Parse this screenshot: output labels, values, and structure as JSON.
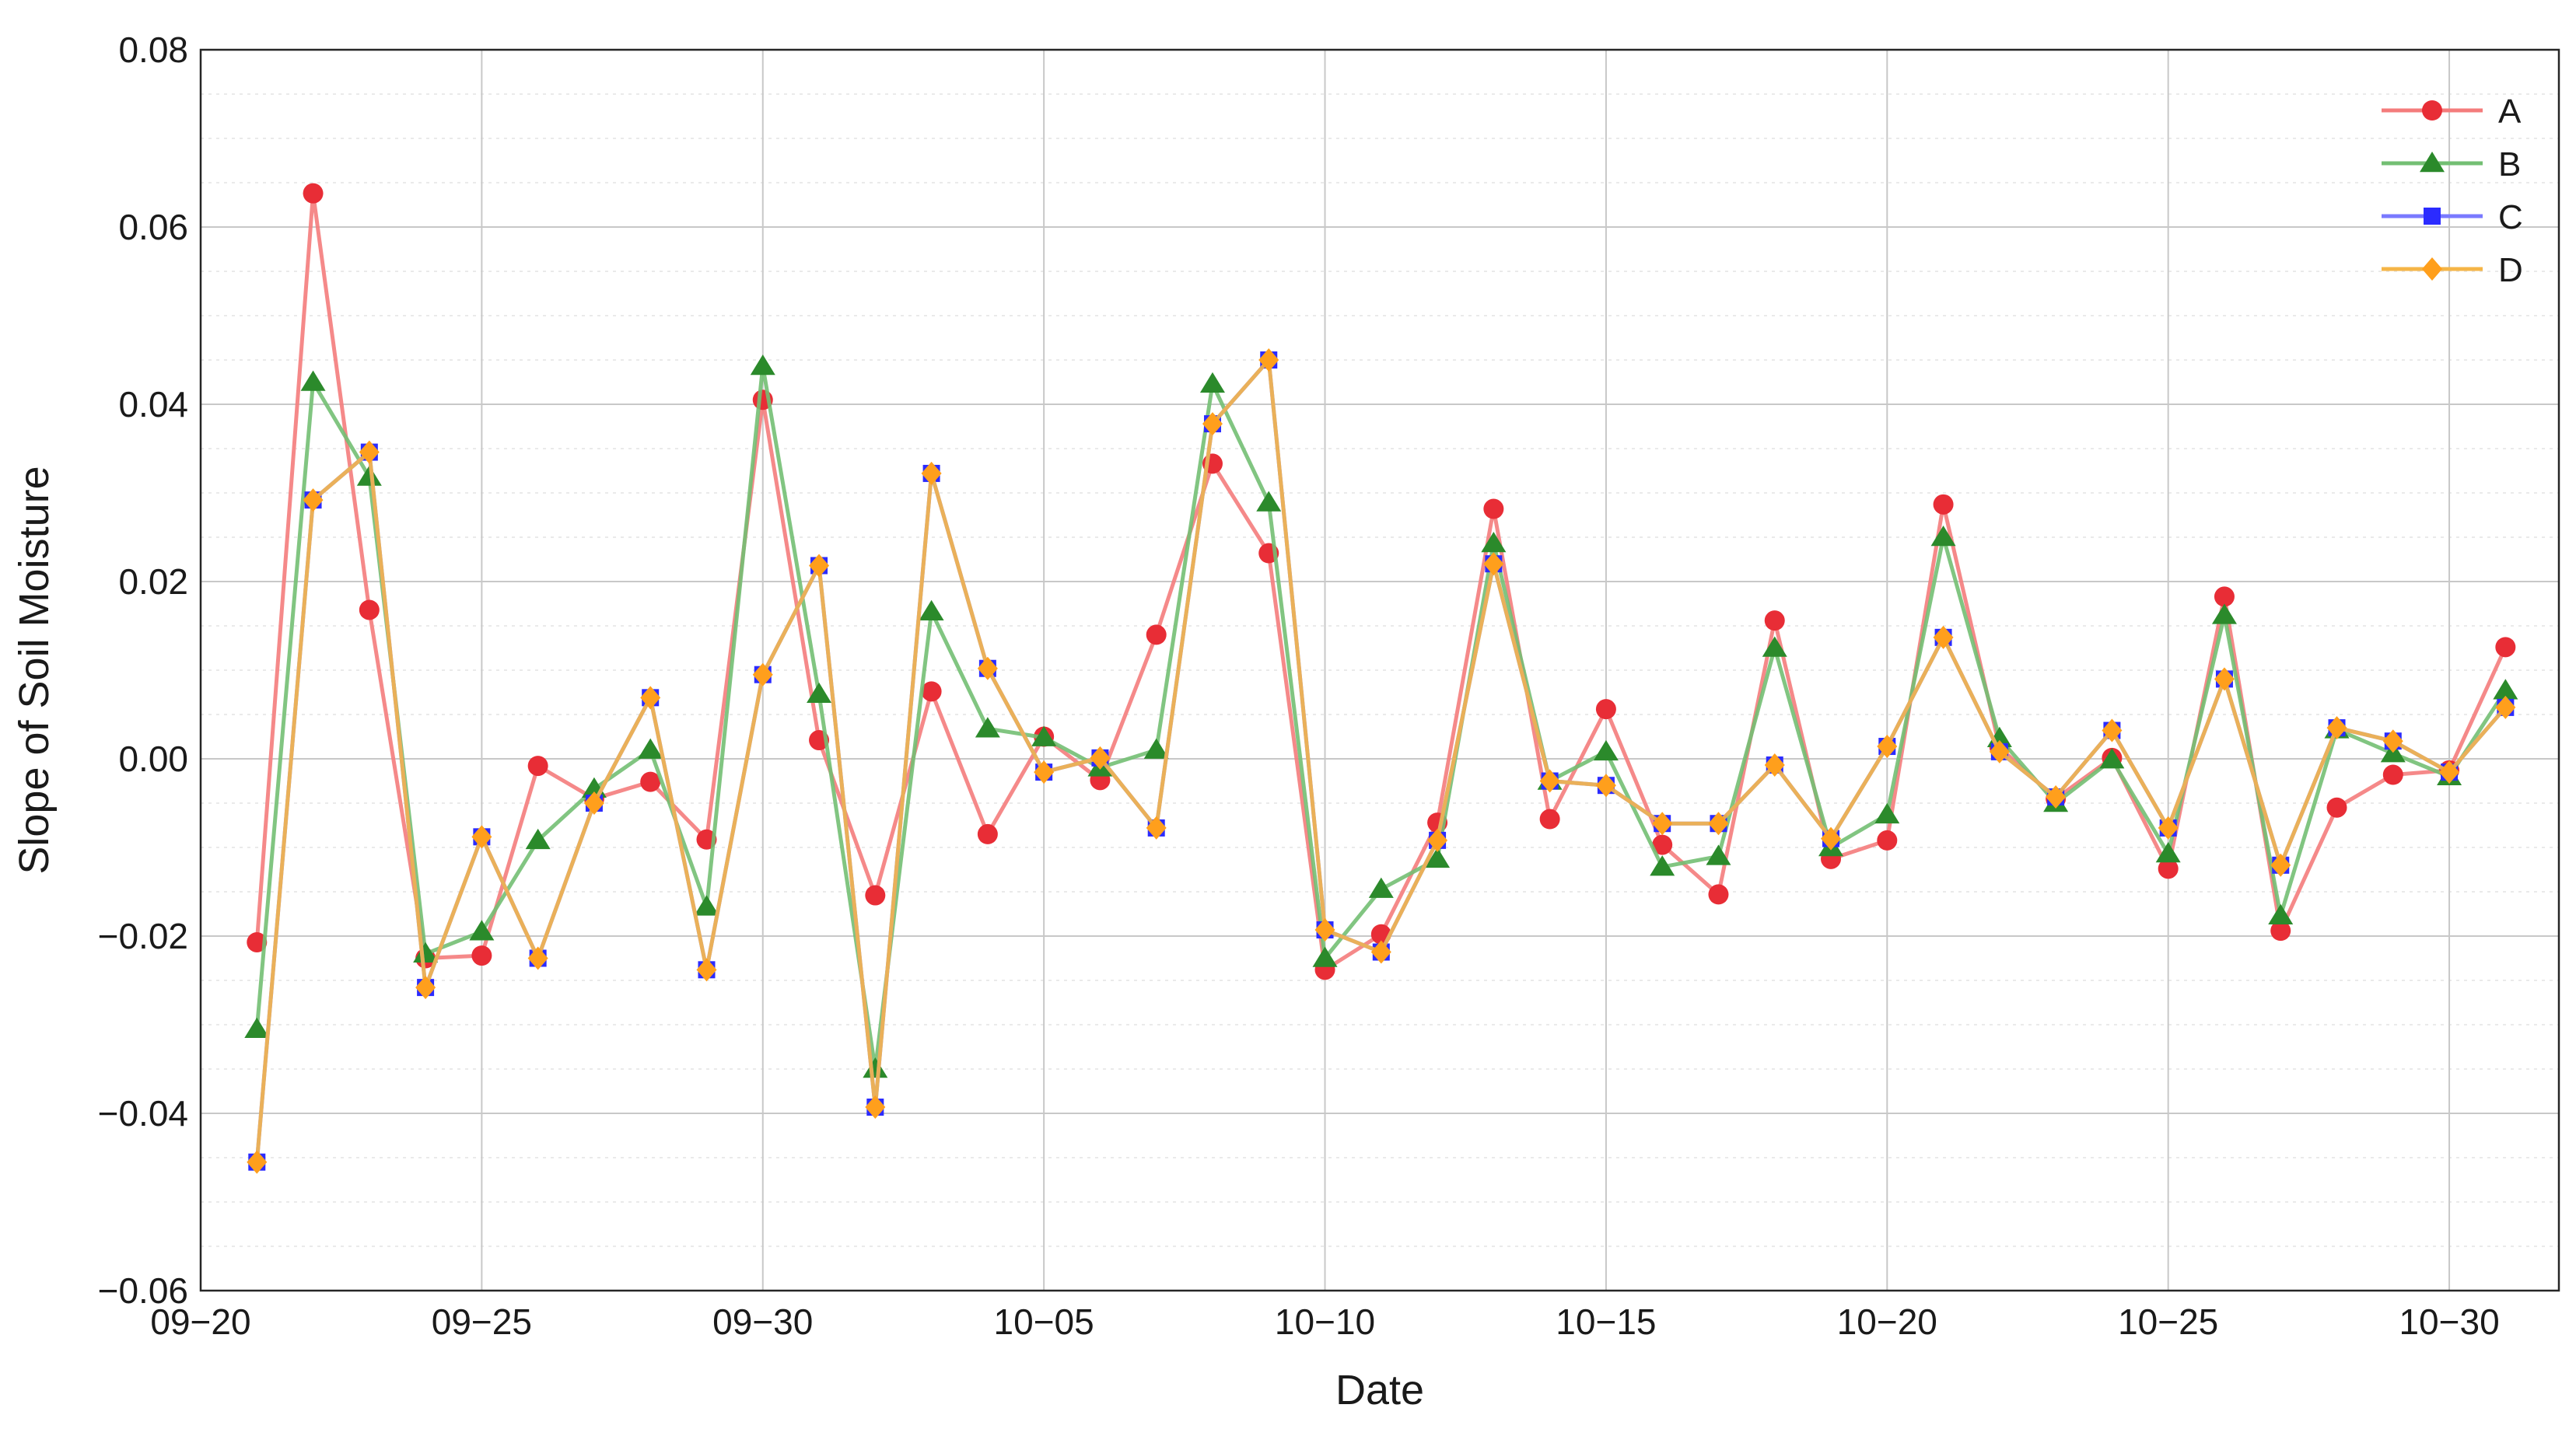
{
  "chart_data": {
    "type": "line",
    "xlabel": "Date",
    "ylabel": "Slope of Soil Moisture",
    "x": [
      "09-21",
      "09-22",
      "09-23",
      "09-24",
      "09-25",
      "09-26",
      "09-27",
      "09-28",
      "09-29",
      "09-30",
      "10-01",
      "10-02",
      "10-03",
      "10-04",
      "10-05",
      "10-06",
      "10-07",
      "10-08",
      "10-09",
      "10-10",
      "10-11",
      "10-12",
      "10-13",
      "10-14",
      "10-15",
      "10-16",
      "10-17",
      "10-18",
      "10-19",
      "10-20",
      "10-21",
      "10-22",
      "10-23",
      "10-24",
      "10-25",
      "10-26",
      "10-27",
      "10-28",
      "10-29",
      "10-30",
      "10-31"
    ],
    "xlim": [
      "09-20",
      "10-31"
    ],
    "x_tick_labels": [
      "09−20",
      "09−25",
      "09−30",
      "10−05",
      "10−10",
      "10−15",
      "10−20",
      "10−25",
      "10−30"
    ],
    "ylim": [
      -0.06,
      0.08
    ],
    "y_ticks": [
      -0.06,
      -0.04,
      -0.02,
      0.0,
      0.02,
      0.04,
      0.06,
      0.08
    ],
    "y_tick_labels": [
      "−0.06",
      "−0.04",
      "−0.02",
      "0.00",
      "0.02",
      "0.04",
      "0.06",
      "0.08"
    ],
    "grid": true,
    "minor_grid": true,
    "legend_position": "top-right",
    "series": [
      {
        "name": "A",
        "color": "#f47c7c",
        "marker_color": "#e82d36",
        "marker": "circle",
        "values": [
          -0.0207,
          0.0638,
          0.0168,
          -0.0225,
          -0.0222,
          -0.0008,
          -0.0045,
          -0.0026,
          -0.0091,
          0.0405,
          0.0021,
          -0.0154,
          0.0076,
          -0.0085,
          0.0025,
          -0.0024,
          0.014,
          0.0333,
          0.0232,
          -0.0238,
          -0.0198,
          -0.0072,
          0.0282,
          -0.0068,
          0.0056,
          -0.0097,
          -0.0153,
          0.0156,
          -0.0113,
          -0.0092,
          0.0287,
          0.0013,
          -0.0045,
          0.0001,
          -0.0124,
          0.0183,
          -0.0194,
          -0.0055,
          -0.0018,
          -0.0013,
          0.0126
        ]
      },
      {
        "name": "B",
        "color": "#73bf73",
        "marker_color": "#2b8a2b",
        "marker": "triangle",
        "values": [
          -0.0305,
          0.0425,
          0.0318,
          -0.022,
          -0.0195,
          -0.0092,
          -0.0034,
          0.001,
          -0.0167,
          0.0443,
          0.0073,
          -0.035,
          0.0166,
          0.0034,
          0.0024,
          -0.001,
          0.001,
          0.0423,
          0.0289,
          -0.0225,
          -0.0147,
          -0.0113,
          0.0243,
          -0.0025,
          0.0008,
          -0.0122,
          -0.011,
          0.0125,
          -0.01,
          -0.0063,
          0.025,
          0.0023,
          -0.005,
          -0.0001,
          -0.0107,
          0.0162,
          -0.0177,
          0.0033,
          0.0006,
          -0.002,
          0.0077
        ]
      },
      {
        "name": "C",
        "color": "#7a7aff",
        "marker_color": "#2b2bff",
        "marker": "square",
        "values": [
          -0.0455,
          0.0292,
          0.0346,
          -0.0258,
          -0.0088,
          -0.0225,
          -0.005,
          0.0069,
          -0.0238,
          0.0095,
          0.0218,
          -0.0393,
          0.0322,
          0.0102,
          -0.0015,
          0.0001,
          -0.0078,
          0.0378,
          0.045,
          -0.0193,
          -0.0218,
          -0.0092,
          0.022,
          -0.0025,
          -0.003,
          -0.0073,
          -0.0073,
          -0.0007,
          -0.009,
          0.0014,
          0.0137,
          0.0008,
          -0.0043,
          0.0032,
          -0.0078,
          0.009,
          -0.012,
          0.0035,
          0.002,
          -0.0015,
          0.0058
        ]
      },
      {
        "name": "D",
        "color": "#f5b547",
        "marker_color": "#ff9f1c",
        "marker": "diamond",
        "values": [
          -0.0455,
          0.0292,
          0.0346,
          -0.0258,
          -0.0088,
          -0.0225,
          -0.005,
          0.0069,
          -0.0238,
          0.0095,
          0.0218,
          -0.0393,
          0.0322,
          0.0102,
          -0.0015,
          0.0001,
          -0.0078,
          0.0378,
          0.045,
          -0.0193,
          -0.0218,
          -0.0092,
          0.022,
          -0.0025,
          -0.003,
          -0.0073,
          -0.0073,
          -0.0007,
          -0.009,
          0.0014,
          0.0137,
          0.0008,
          -0.0043,
          0.0032,
          -0.0078,
          0.009,
          -0.012,
          0.0035,
          0.002,
          -0.0015,
          0.0058
        ]
      }
    ]
  }
}
